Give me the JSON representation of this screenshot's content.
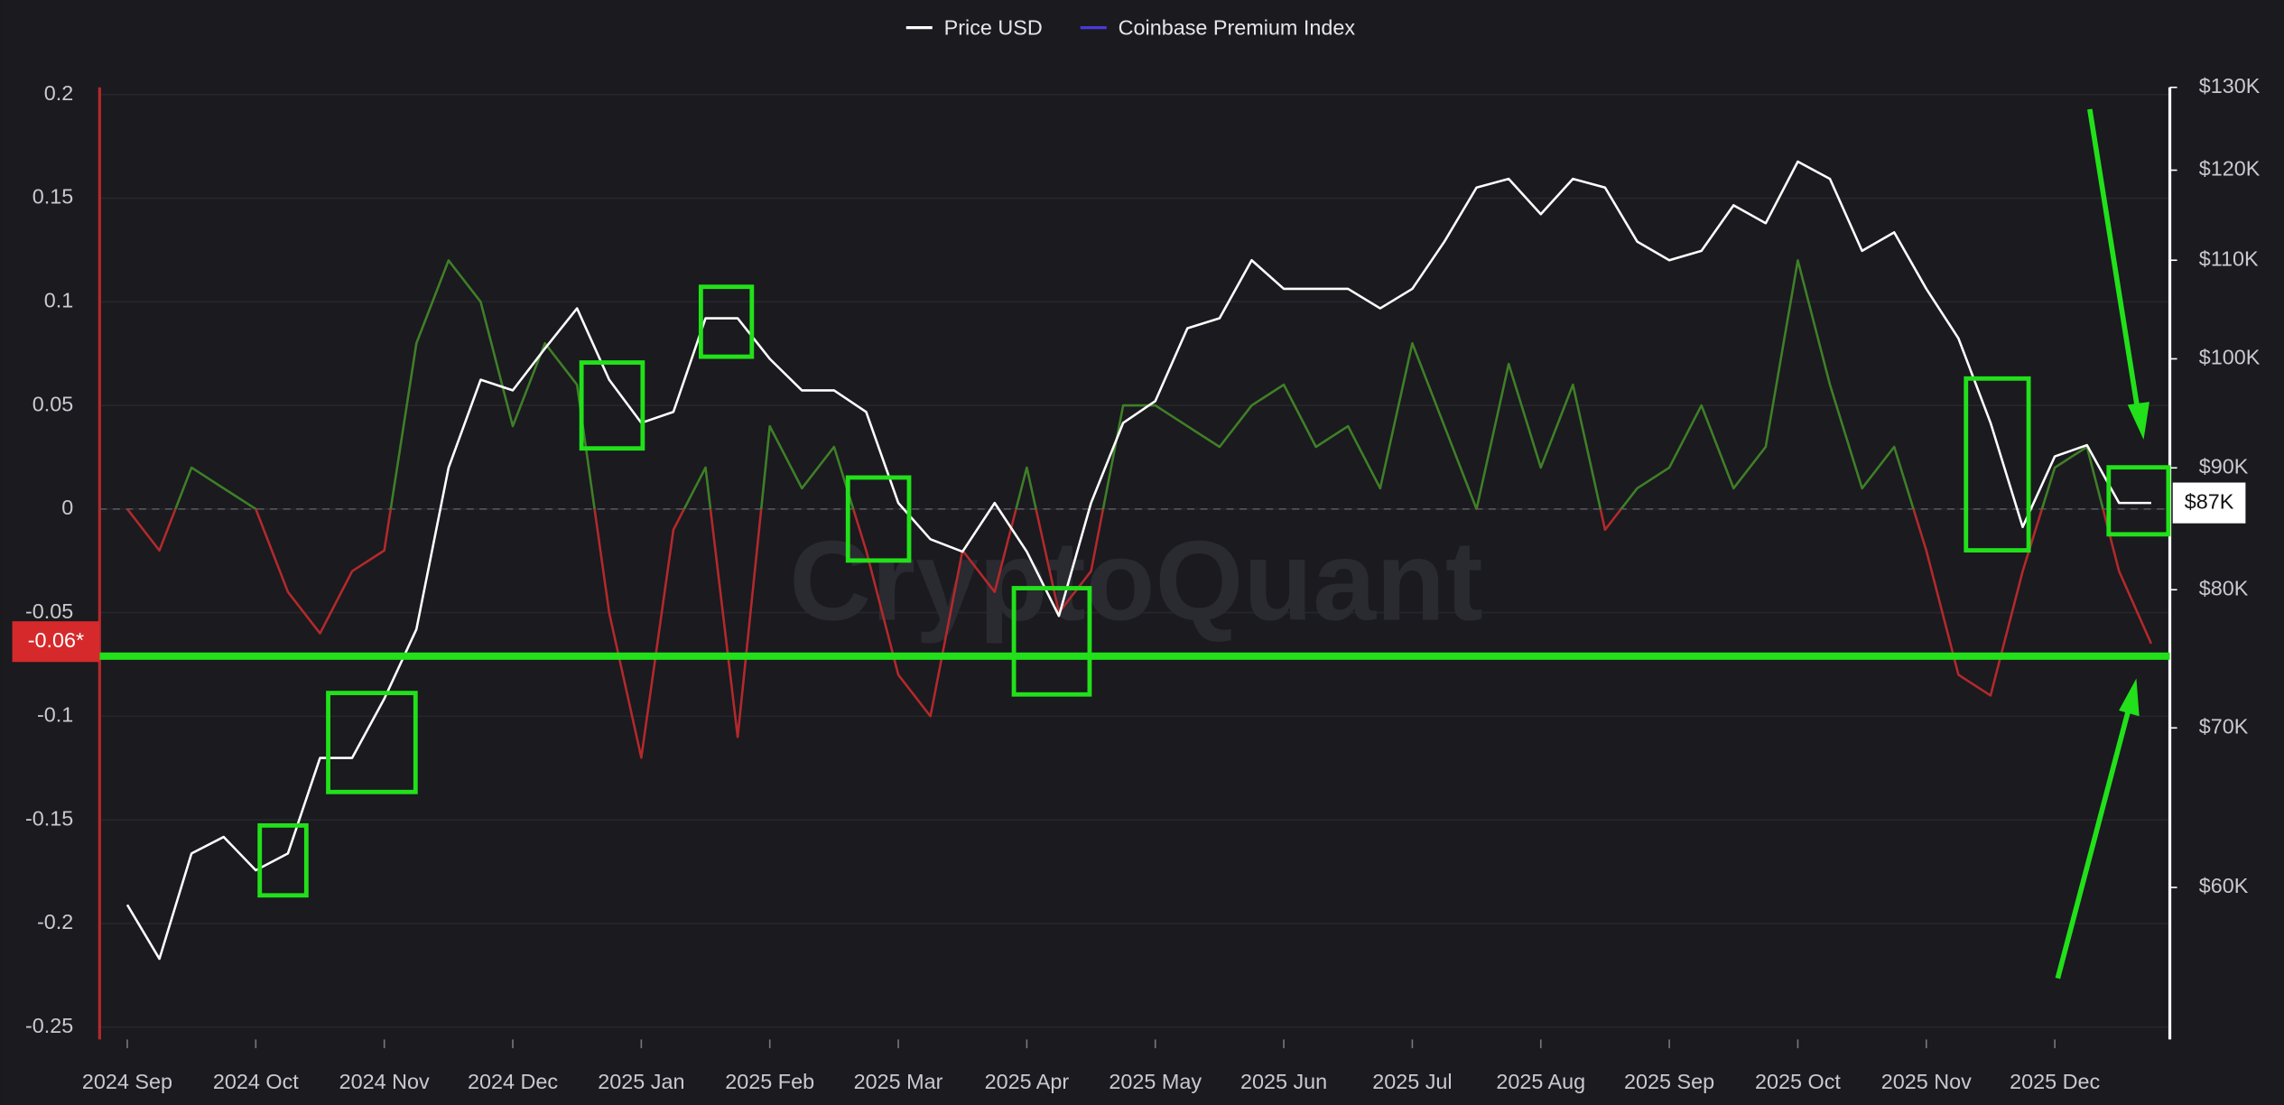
{
  "chart_data": {
    "type": "line",
    "watermark": "CryptoQuant",
    "categories": [
      "2024 Sep",
      null,
      null,
      null,
      "2024 Oct",
      null,
      null,
      null,
      "2024 Nov",
      null,
      null,
      null,
      "2024 Dec",
      null,
      null,
      null,
      "2025 Jan",
      null,
      null,
      null,
      "2025 Feb",
      null,
      null,
      null,
      "2025 Mar",
      null,
      null,
      null,
      "2025 Apr",
      null,
      null,
      null,
      "2025 May",
      null,
      null,
      null,
      "2025 Jun",
      null,
      null,
      null,
      "2025 Jul",
      null,
      null,
      null,
      "2025 Aug",
      null,
      null,
      null,
      "2025 Sep",
      null,
      null,
      null,
      "2025 Oct",
      null,
      null,
      null,
      "2025 Nov",
      null,
      null,
      null,
      "2025 Dec",
      null,
      null,
      null
    ],
    "series": [
      {
        "name": "Price USD",
        "color": "#ffffff",
        "axis": "y2",
        "values": [
          59000,
          56000,
          62000,
          63000,
          61000,
          62000,
          68000,
          68000,
          72000,
          77000,
          90000,
          98000,
          97000,
          101000,
          105000,
          98000,
          94000,
          95000,
          104000,
          104000,
          100000,
          97000,
          97000,
          95000,
          87000,
          84000,
          83000,
          87000,
          83000,
          78000,
          87000,
          94000,
          96000,
          103000,
          104000,
          110000,
          107000,
          107000,
          107000,
          105000,
          107000,
          112000,
          118000,
          119000,
          115000,
          119000,
          118000,
          112000,
          110000,
          111000,
          116000,
          114000,
          121000,
          119000,
          111000,
          113000,
          107000,
          102000,
          94000,
          85000,
          91000,
          92000,
          87000,
          87000
        ]
      },
      {
        "name": "Coinbase Premium Index",
        "color": "#4a3ad6",
        "positive_color": "#3f7f27",
        "negative_color": "#b3292b",
        "values": [
          0.0,
          -0.02,
          0.02,
          0.01,
          0.0,
          -0.04,
          -0.06,
          -0.03,
          -0.02,
          0.08,
          0.12,
          0.1,
          0.04,
          0.08,
          0.06,
          -0.05,
          -0.12,
          -0.01,
          0.02,
          -0.11,
          0.04,
          0.01,
          0.03,
          -0.02,
          -0.08,
          -0.1,
          -0.02,
          -0.04,
          0.02,
          -0.05,
          -0.03,
          0.05,
          0.05,
          0.04,
          0.03,
          0.05,
          0.06,
          0.03,
          0.04,
          0.01,
          0.08,
          0.04,
          0.0,
          0.07,
          0.02,
          0.06,
          -0.01,
          0.01,
          0.02,
          0.05,
          0.01,
          0.03,
          0.12,
          0.06,
          0.01,
          0.03,
          -0.02,
          -0.08,
          -0.09,
          -0.03,
          0.02,
          0.03,
          -0.03,
          -0.065
        ]
      }
    ],
    "ylim": [
      -0.256,
      0.2035
    ],
    "yticks": [
      0.2,
      0.15,
      0.1,
      0.05,
      0,
      -0.05,
      -0.1,
      -0.15,
      -0.2,
      -0.25
    ],
    "y2lim": [
      51800,
      130000
    ],
    "y2log": true,
    "y2ticks": [
      {
        "value": 130000,
        "label": "$130K"
      },
      {
        "value": 120000,
        "label": "$120K"
      },
      {
        "value": 110000,
        "label": "$110K"
      },
      {
        "value": 100000,
        "label": "$100K"
      },
      {
        "value": 90000,
        "label": "$90K"
      },
      {
        "value": 80000,
        "label": "$80K"
      },
      {
        "value": 70000,
        "label": "$70K"
      },
      {
        "value": 60000,
        "label": "$60K"
      }
    ],
    "grid": true,
    "zero_line": 0,
    "reference_line": -0.071,
    "reference_color": "#22e01a",
    "current_y_label": {
      "value": -0.064,
      "label": "-0.06*"
    },
    "current_y2_label": {
      "value": 87000,
      "label": "$87K"
    },
    "legend": "top"
  }
}
